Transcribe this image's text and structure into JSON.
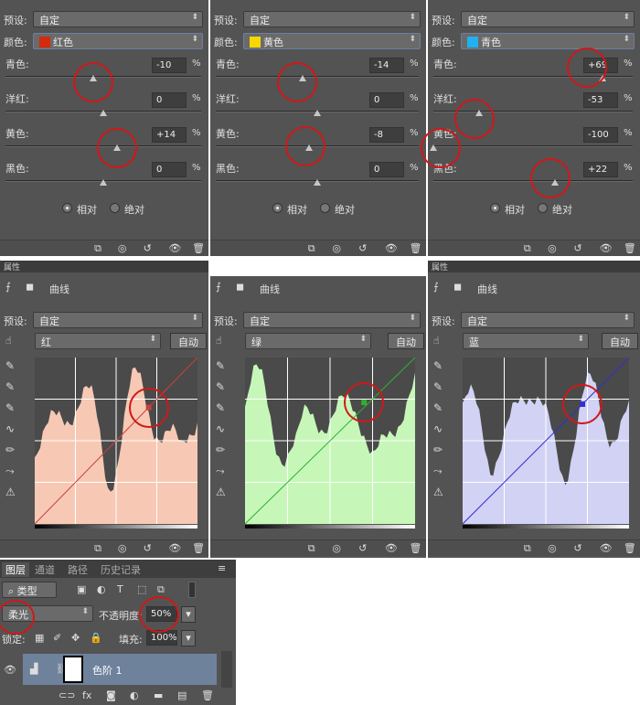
{
  "hue_panels": [
    {
      "preset_label": "预设:",
      "preset": "自定",
      "color_label": "颜色:",
      "color": "红色",
      "swatch": "#d42a10",
      "sliders": [
        {
          "label": "青色:",
          "value": "-10"
        },
        {
          "label": "洋红:",
          "value": "0"
        },
        {
          "label": "黄色:",
          "value": "+14"
        },
        {
          "label": "黑色:",
          "value": "0"
        }
      ],
      "relative": "相对",
      "absolute": "绝对"
    },
    {
      "preset_label": "预设:",
      "preset": "自定",
      "color_label": "颜色:",
      "color": "黄色",
      "swatch": "#f5d800",
      "sliders": [
        {
          "label": "青色:",
          "value": "-14"
        },
        {
          "label": "洋红:",
          "value": "0"
        },
        {
          "label": "黄色:",
          "value": "-8"
        },
        {
          "label": "黑色:",
          "value": "0"
        }
      ],
      "relative": "相对",
      "absolute": "绝对"
    },
    {
      "preset_label": "预设:",
      "preset": "自定",
      "color_label": "颜色:",
      "color": "青色",
      "swatch": "#22b0ee",
      "sliders": [
        {
          "label": "青色:",
          "value": "+69"
        },
        {
          "label": "洋红:",
          "value": "-53"
        },
        {
          "label": "黄色:",
          "value": "-100"
        },
        {
          "label": "黑色:",
          "value": "+22"
        }
      ],
      "relative": "相对",
      "absolute": "绝对"
    }
  ],
  "percent": "%",
  "curves_panels": [
    {
      "header": "属性",
      "title": "曲线",
      "preset_label": "预设:",
      "preset": "自定",
      "channel": "红",
      "auto": "自动",
      "fill": "#f7c9b4",
      "line": "#c84040"
    },
    {
      "header": "",
      "title": "曲线",
      "preset_label": "预设:",
      "preset": "自定",
      "channel": "绿",
      "auto": "自动",
      "fill": "#c6f7b8",
      "line": "#30b030"
    },
    {
      "header": "属性",
      "title": "曲线",
      "preset_label": "预设:",
      "preset": "自定",
      "channel": "蓝",
      "auto": "自动",
      "fill": "#d2d2f5",
      "line": "#3030d0"
    }
  ],
  "layers": {
    "tabs": [
      "图层",
      "通道",
      "路径",
      "历史记录"
    ],
    "filter": "类型",
    "blend_mode": "柔光",
    "opacity_label": "不透明度:",
    "opacity": "50%",
    "lock_label": "锁定:",
    "fill_label": "填充:",
    "fill": "100%",
    "layer_name": "色阶 1"
  }
}
